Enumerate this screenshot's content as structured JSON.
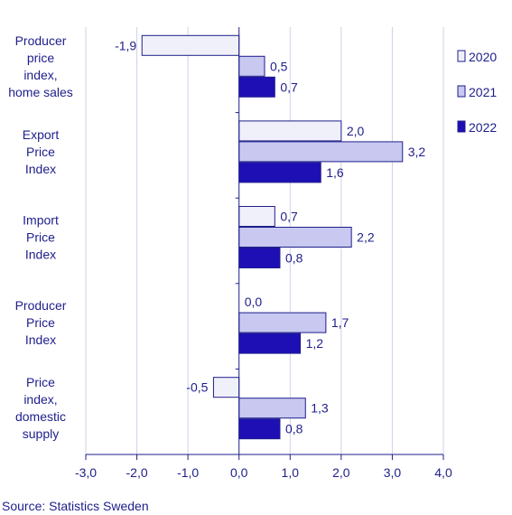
{
  "chart_data": {
    "type": "bar",
    "orientation": "horizontal",
    "categories": [
      [
        "Producer",
        "price",
        "index,",
        "home sales"
      ],
      [
        "Export",
        "Price",
        "Index"
      ],
      [
        "Import",
        "Price",
        "Index"
      ],
      [
        "Producer",
        "Price",
        "Index"
      ],
      [
        "Price",
        "index,",
        "domestic",
        "supply"
      ]
    ],
    "series": [
      {
        "name": "2020",
        "values": [
          -1.9,
          2.0,
          0.7,
          0.0,
          -0.5
        ],
        "labels": [
          "-1,9",
          "2,0",
          "0,7",
          "0,0",
          "-0,5"
        ],
        "color": "#f0f0fa"
      },
      {
        "name": "2021",
        "values": [
          0.5,
          3.2,
          2.2,
          1.7,
          1.3
        ],
        "labels": [
          "0,5",
          "3,2",
          "2,2",
          "1,7",
          "1,3"
        ],
        "color": "#c8c8f0"
      },
      {
        "name": "2022",
        "values": [
          0.7,
          1.6,
          0.8,
          1.2,
          0.8
        ],
        "labels": [
          "0,7",
          "1,6",
          "0,8",
          "1,2",
          "0,8"
        ],
        "color": "#1e0fb4"
      }
    ],
    "xlim": [
      -3.0,
      4.0
    ],
    "xticks": [
      -3.0,
      -2.0,
      -1.0,
      0.0,
      1.0,
      2.0,
      3.0,
      4.0
    ],
    "xtick_labels": [
      "-3,0",
      "-2,0",
      "-1,0",
      "0,0",
      "1,0",
      "2,0",
      "3,0",
      "4,0"
    ],
    "grid": "vertical",
    "legend_position": "top-right"
  },
  "colors": {
    "text": "#1e1e8c",
    "bar_edge": "#1e1e8c",
    "grid": "#d0d0e8",
    "axis": "#1e1e8c"
  },
  "source": "Source: Statistics Sweden"
}
